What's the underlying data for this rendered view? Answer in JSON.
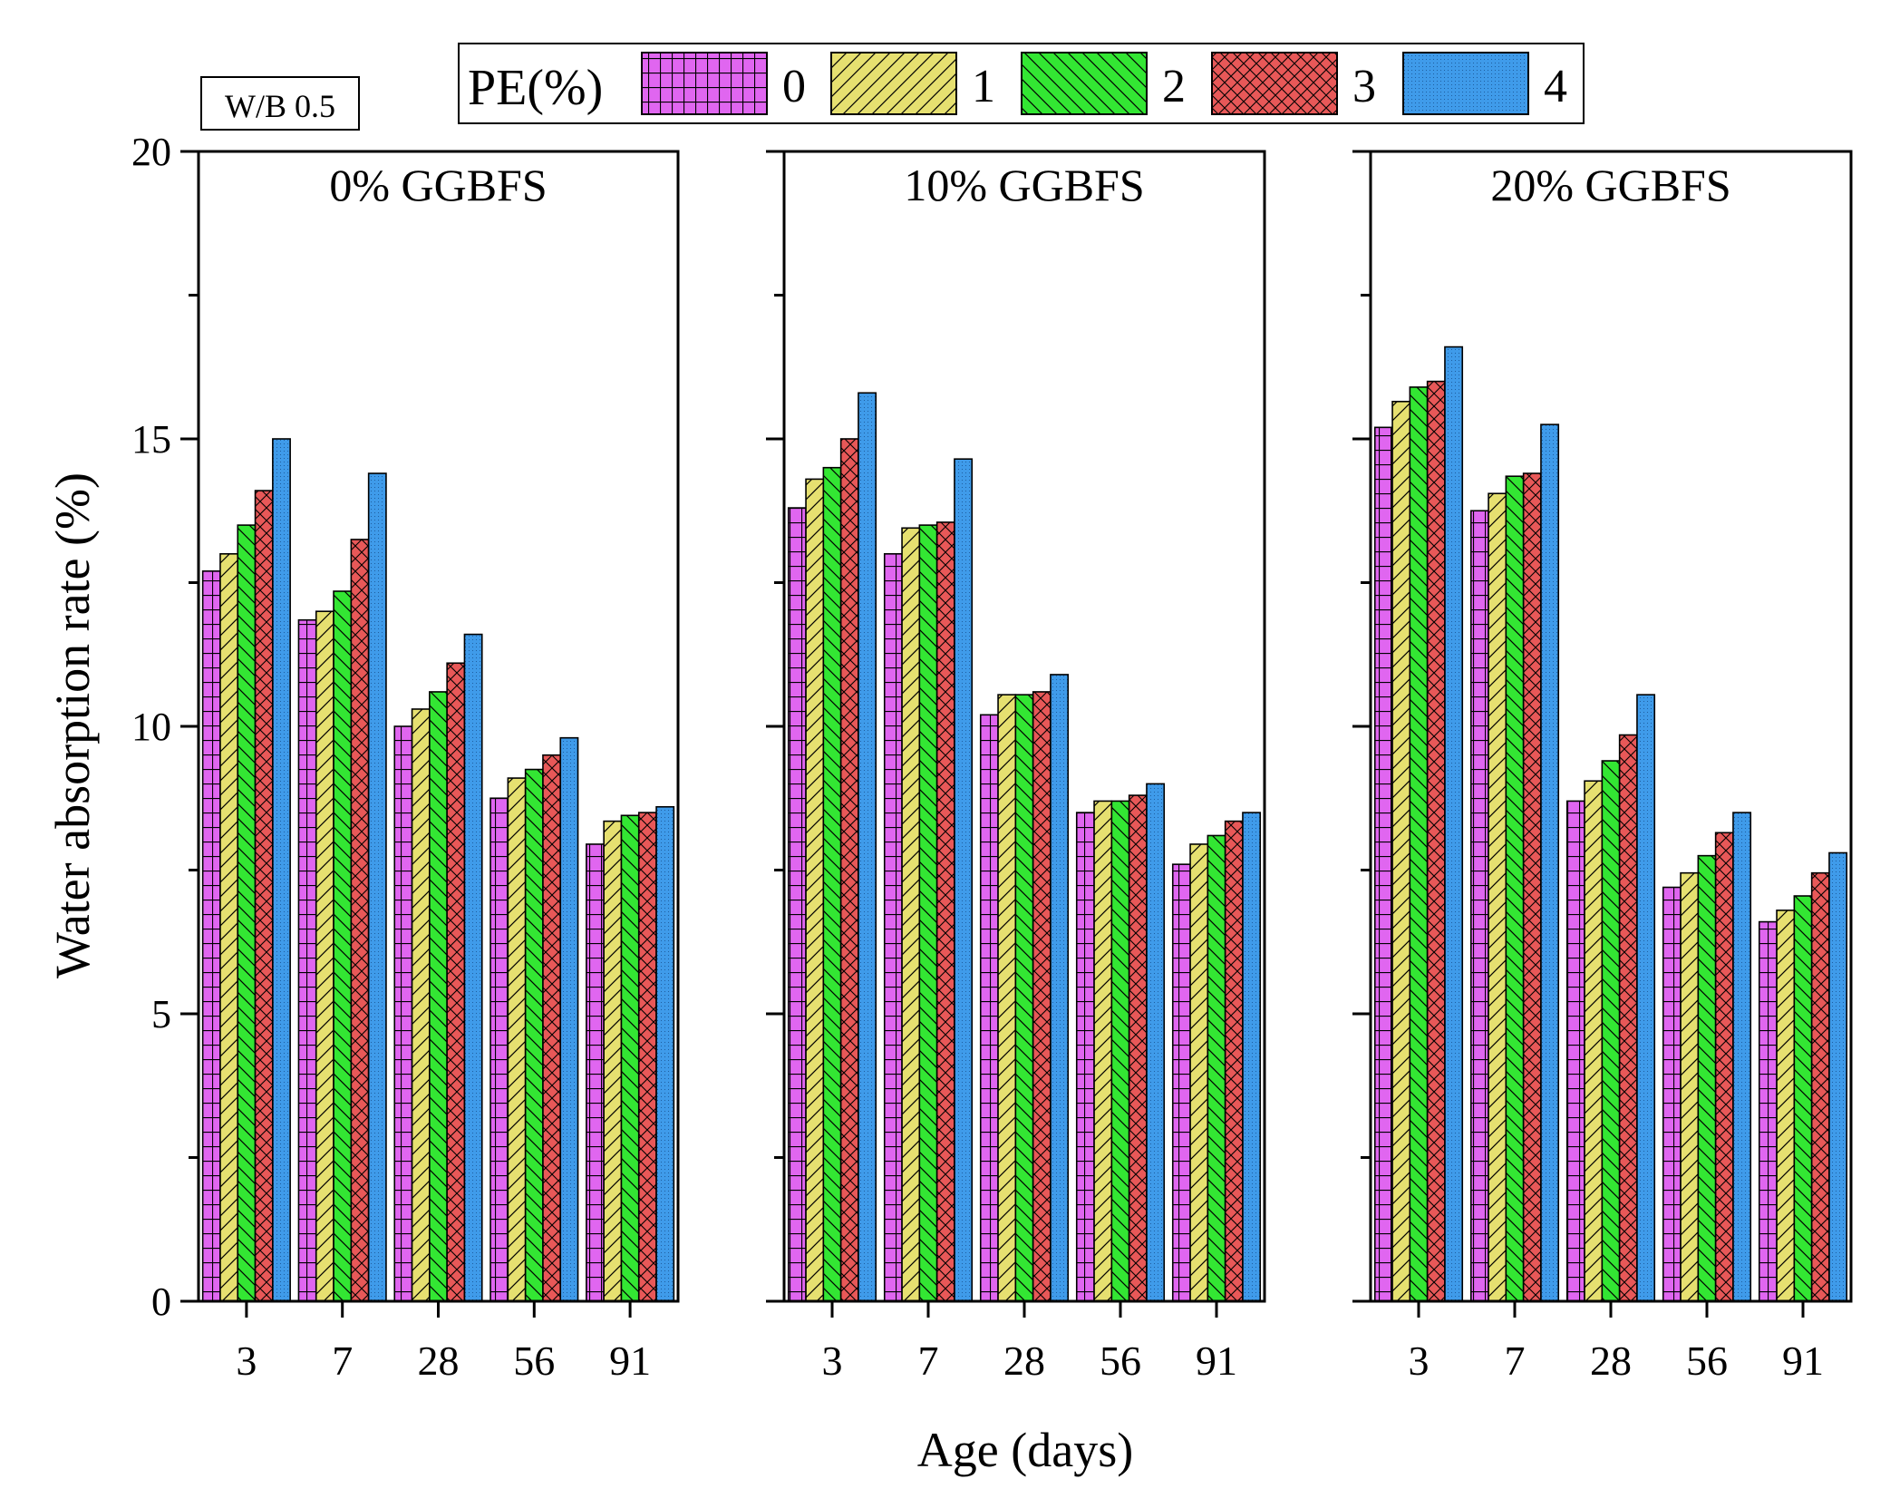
{
  "chart_data": {
    "type": "bar",
    "note": "W/B 0.5",
    "ylabel": "Water absorption rate (%)",
    "xlabel": "Age (days)",
    "ylim": [
      0,
      20
    ],
    "yticks": [
      "0",
      "5",
      "10",
      "15",
      "20"
    ],
    "categories": [
      "3",
      "7",
      "28",
      "56",
      "91"
    ],
    "legend": {
      "title": "PE(%)",
      "position": "top-center",
      "entries": [
        "0",
        "1",
        "2",
        "3",
        "4"
      ]
    },
    "series_colors": [
      "#e066f0",
      "#e6e070",
      "#33e633",
      "#e85858",
      "#3f9bea"
    ],
    "panels": [
      {
        "title": "0% GGBFS",
        "series": [
          {
            "name": "0",
            "values": [
              12.7,
              11.85,
              10.0,
              8.75,
              7.95
            ]
          },
          {
            "name": "1",
            "values": [
              13.0,
              12.0,
              10.3,
              9.1,
              8.35
            ]
          },
          {
            "name": "2",
            "values": [
              13.5,
              12.35,
              10.6,
              9.25,
              8.45
            ]
          },
          {
            "name": "3",
            "values": [
              14.1,
              13.25,
              11.1,
              9.5,
              8.5
            ]
          },
          {
            "name": "4",
            "values": [
              15.0,
              14.4,
              11.6,
              9.8,
              8.6
            ]
          }
        ]
      },
      {
        "title": "10% GGBFS",
        "series": [
          {
            "name": "0",
            "values": [
              13.8,
              13.0,
              10.2,
              8.5,
              7.6
            ]
          },
          {
            "name": "1",
            "values": [
              14.3,
              13.45,
              10.55,
              8.7,
              7.95
            ]
          },
          {
            "name": "2",
            "values": [
              14.5,
              13.5,
              10.55,
              8.7,
              8.1
            ]
          },
          {
            "name": "3",
            "values": [
              15.0,
              13.55,
              10.6,
              8.8,
              8.35
            ]
          },
          {
            "name": "4",
            "values": [
              15.8,
              14.65,
              10.9,
              9.0,
              8.5
            ]
          }
        ]
      },
      {
        "title": "20% GGBFS",
        "series": [
          {
            "name": "0",
            "values": [
              15.2,
              13.75,
              8.7,
              7.2,
              6.6
            ]
          },
          {
            "name": "1",
            "values": [
              15.65,
              14.05,
              9.05,
              7.45,
              6.8
            ]
          },
          {
            "name": "2",
            "values": [
              15.9,
              14.35,
              9.4,
              7.75,
              7.05
            ]
          },
          {
            "name": "3",
            "values": [
              16.0,
              14.4,
              9.85,
              8.15,
              7.45
            ]
          },
          {
            "name": "4",
            "values": [
              16.6,
              15.25,
              10.55,
              8.5,
              7.8
            ]
          }
        ]
      }
    ]
  }
}
